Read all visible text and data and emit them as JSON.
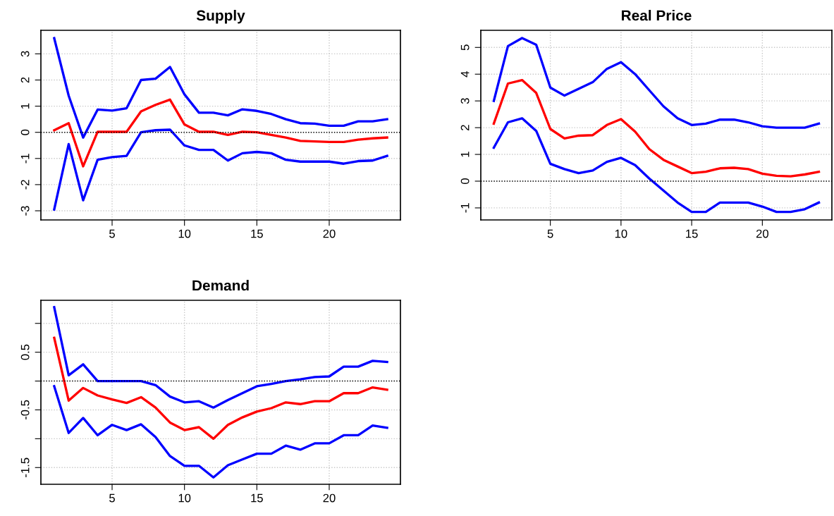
{
  "chart_data": [
    {
      "type": "line",
      "title": "Supply",
      "x": [
        1,
        2,
        3,
        4,
        5,
        6,
        7,
        8,
        9,
        10,
        11,
        12,
        13,
        14,
        15,
        16,
        17,
        18,
        19,
        20,
        21,
        22,
        23,
        24
      ],
      "xlim": [
        0.08,
        24.92
      ],
      "xticks": [
        5,
        10,
        15,
        20
      ],
      "ylim": [
        -3.35,
        3.9
      ],
      "yticks": [
        -3,
        -2,
        -1,
        0,
        1,
        2,
        3
      ],
      "grid": true,
      "legend": false,
      "line_style": "solid",
      "marker": "none",
      "ref_lines": [
        {
          "axis": "y",
          "value": 0,
          "color": "#000000",
          "line_style": "dotted"
        }
      ],
      "series": [
        {
          "color": "#0000ff",
          "values": [
            3.6,
            1.4,
            -0.2,
            0.87,
            0.83,
            0.92,
            2.0,
            2.05,
            2.5,
            1.45,
            0.75,
            0.75,
            0.65,
            0.88,
            0.82,
            0.7,
            0.5,
            0.35,
            0.33,
            0.25,
            0.25,
            0.42,
            0.42,
            0.5
          ]
        },
        {
          "color": "#ff0000",
          "values": [
            0.08,
            0.35,
            -1.3,
            0.02,
            0.02,
            0.02,
            0.8,
            1.05,
            1.25,
            0.3,
            0.02,
            0.02,
            -0.1,
            0.02,
            0.0,
            -0.1,
            -0.2,
            -0.33,
            -0.35,
            -0.37,
            -0.37,
            -0.28,
            -0.23,
            -0.2
          ]
        },
        {
          "color": "#0000ff",
          "values": [
            -2.95,
            -0.45,
            -2.6,
            -1.05,
            -0.95,
            -0.9,
            0.0,
            0.08,
            0.1,
            -0.5,
            -0.67,
            -0.67,
            -1.08,
            -0.8,
            -0.75,
            -0.8,
            -1.05,
            -1.12,
            -1.12,
            -1.12,
            -1.2,
            -1.1,
            -1.08,
            -0.9
          ]
        }
      ]
    },
    {
      "type": "line",
      "title": "Real Price",
      "x": [
        1,
        2,
        3,
        4,
        5,
        6,
        7,
        8,
        9,
        10,
        11,
        12,
        13,
        14,
        15,
        16,
        17,
        18,
        19,
        20,
        21,
        22,
        23,
        24
      ],
      "xlim": [
        0.08,
        24.92
      ],
      "xticks": [
        5,
        10,
        15,
        20
      ],
      "ylim": [
        -1.45,
        5.64
      ],
      "yticks": [
        -1,
        0,
        1,
        2,
        3,
        4,
        5
      ],
      "grid": true,
      "legend": false,
      "line_style": "solid",
      "marker": "none",
      "ref_lines": [
        {
          "axis": "y",
          "value": 0,
          "color": "#000000",
          "line_style": "dotted"
        }
      ],
      "series": [
        {
          "color": "#0000ff",
          "values": [
            3.0,
            5.05,
            5.35,
            5.1,
            3.5,
            3.2,
            3.45,
            3.7,
            4.2,
            4.45,
            4.0,
            3.4,
            2.8,
            2.35,
            2.1,
            2.15,
            2.3,
            2.3,
            2.2,
            2.05,
            2.0,
            2.0,
            2.0,
            2.15
          ]
        },
        {
          "color": "#ff0000",
          "values": [
            2.15,
            3.65,
            3.78,
            3.3,
            1.95,
            1.6,
            1.7,
            1.72,
            2.1,
            2.32,
            1.85,
            1.2,
            0.8,
            0.55,
            0.3,
            0.35,
            0.48,
            0.5,
            0.45,
            0.28,
            0.2,
            0.18,
            0.25,
            0.35
          ]
        },
        {
          "color": "#0000ff",
          "values": [
            1.25,
            2.2,
            2.35,
            1.88,
            0.65,
            0.45,
            0.3,
            0.4,
            0.72,
            0.87,
            0.6,
            0.1,
            -0.35,
            -0.8,
            -1.15,
            -1.15,
            -0.8,
            -0.8,
            -0.8,
            -0.95,
            -1.15,
            -1.15,
            -1.05,
            -0.8
          ]
        }
      ]
    },
    {
      "type": "line",
      "title": "Demand",
      "x": [
        1,
        2,
        3,
        4,
        5,
        6,
        7,
        8,
        9,
        10,
        11,
        12,
        13,
        14,
        15,
        16,
        17,
        18,
        19,
        20,
        21,
        22,
        23,
        24
      ],
      "xlim": [
        0.08,
        24.92
      ],
      "xticks": [
        5,
        10,
        15,
        20
      ],
      "ylim": [
        -1.79,
        1.4
      ],
      "yticks": [
        -1.5,
        {
          "value": -1,
          "label": null
        },
        -0.5,
        {
          "value": 0,
          "label": null
        },
        0.5,
        {
          "value": 1,
          "label": null
        }
      ],
      "grid": true,
      "legend": false,
      "line_style": "solid",
      "marker": "none",
      "ref_lines": [
        {
          "axis": "y",
          "value": 0,
          "color": "#000000",
          "line_style": "dotted"
        }
      ],
      "series": [
        {
          "color": "#0000ff",
          "values": [
            1.28,
            0.1,
            0.29,
            0.0,
            0.0,
            0.0,
            0.0,
            -0.07,
            -0.27,
            -0.37,
            -0.35,
            -0.46,
            -0.33,
            -0.21,
            -0.09,
            -0.05,
            0.0,
            0.03,
            0.07,
            0.08,
            0.25,
            0.25,
            0.35,
            0.33
          ]
        },
        {
          "color": "#ff0000",
          "values": [
            0.75,
            -0.34,
            -0.12,
            -0.25,
            -0.32,
            -0.38,
            -0.28,
            -0.46,
            -0.72,
            -0.85,
            -0.8,
            -1.0,
            -0.76,
            -0.63,
            -0.53,
            -0.47,
            -0.37,
            -0.4,
            -0.35,
            -0.35,
            -0.21,
            -0.21,
            -0.11,
            -0.15
          ]
        },
        {
          "color": "#0000ff",
          "values": [
            -0.09,
            -0.9,
            -0.64,
            -0.94,
            -0.76,
            -0.85,
            -0.75,
            -0.97,
            -1.3,
            -1.47,
            -1.47,
            -1.67,
            -1.46,
            -1.36,
            -1.26,
            -1.26,
            -1.12,
            -1.19,
            -1.08,
            -1.08,
            -0.94,
            -0.94,
            -0.77,
            -0.81
          ]
        }
      ]
    }
  ]
}
